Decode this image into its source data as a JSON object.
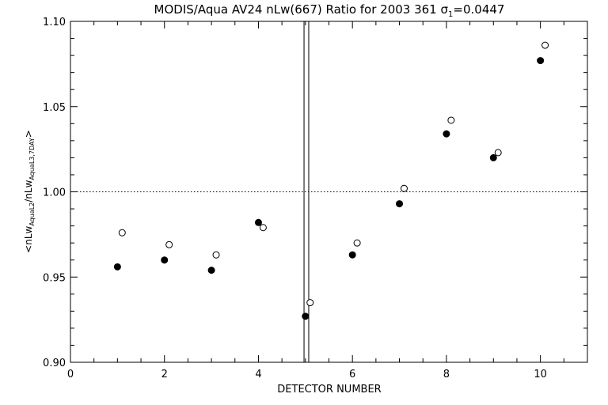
{
  "chart_data": {
    "type": "scatter",
    "title": "MODIS/Aqua AV24 nLw(667) Ratio for 2003 361 σ1=0.0447",
    "xlabel": "DETECTOR NUMBER",
    "ylabel": "<nLwAquaL2/nLwAquaL3,7DAY>",
    "xlim": [
      0,
      11
    ],
    "ylim": [
      0.9,
      1.1
    ],
    "x_ticks": [
      0,
      2,
      4,
      6,
      8,
      10
    ],
    "x_minor_step": 0.5,
    "y_ticks": [
      0.9,
      0.95,
      1.0,
      1.05,
      1.1
    ],
    "y_minor_step": 0.01,
    "reference_line_y": 1.0,
    "vertical_lines_x": [
      4.97,
      5.07
    ],
    "grid": false,
    "series": [
      {
        "marker": "filled-circle",
        "x": [
          1,
          2,
          3,
          4,
          5,
          6,
          7,
          8,
          9,
          10
        ],
        "y": [
          0.956,
          0.96,
          0.954,
          0.982,
          0.927,
          0.963,
          0.993,
          1.034,
          1.02,
          1.077
        ]
      },
      {
        "marker": "open-circle",
        "x": [
          1.1,
          2.1,
          3.1,
          4.1,
          5.1,
          6.1,
          7.1,
          8.1,
          9.1,
          10.1
        ],
        "y": [
          0.976,
          0.969,
          0.963,
          0.979,
          0.935,
          0.97,
          1.002,
          1.042,
          1.023,
          1.086
        ]
      }
    ]
  }
}
